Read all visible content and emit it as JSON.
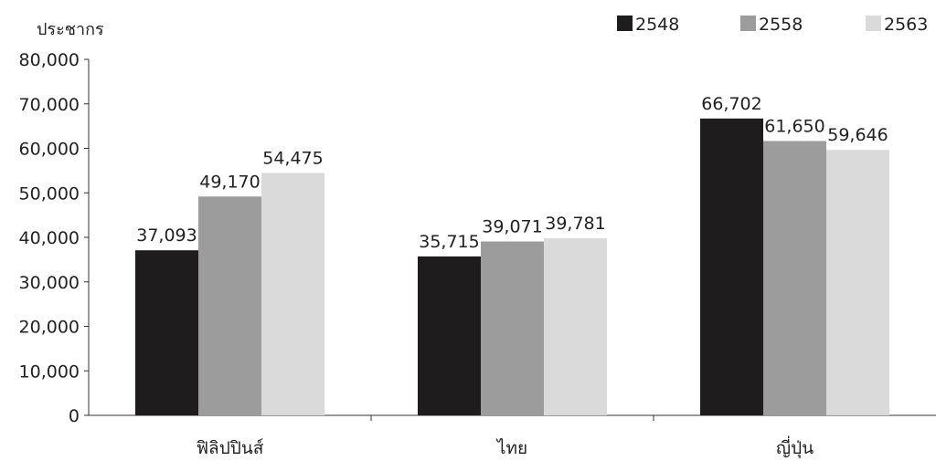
{
  "chart_data": {
    "type": "bar",
    "ylabel": "ประชากร",
    "categories": [
      "ฟิลิปปินส์",
      "ไทย",
      "ญี่ปุ่น"
    ],
    "series": [
      {
        "name": "2548",
        "color": "#1f1c1e",
        "values": [
          37093,
          35715,
          66702
        ]
      },
      {
        "name": "2558",
        "color": "#9c9c9c",
        "values": [
          49170,
          39071,
          61650
        ]
      },
      {
        "name": "2563",
        "color": "#dadada",
        "values": [
          54475,
          39781,
          59646
        ]
      }
    ],
    "data_labels": [
      [
        "37,093",
        "35,715",
        "66,702"
      ],
      [
        "49,170",
        "39,071",
        "61,650"
      ],
      [
        "54,475",
        "39,781",
        "59,646"
      ]
    ],
    "ylim": [
      0,
      80000
    ],
    "yticks": [
      0,
      10000,
      20000,
      30000,
      40000,
      50000,
      60000,
      70000,
      80000
    ],
    "ytick_labels": [
      "0",
      "10,000",
      "20,000",
      "30,000",
      "40,000",
      "50,000",
      "60,000",
      "70,000",
      "80,000"
    ],
    "legend_position": "top-right",
    "grid": false
  }
}
